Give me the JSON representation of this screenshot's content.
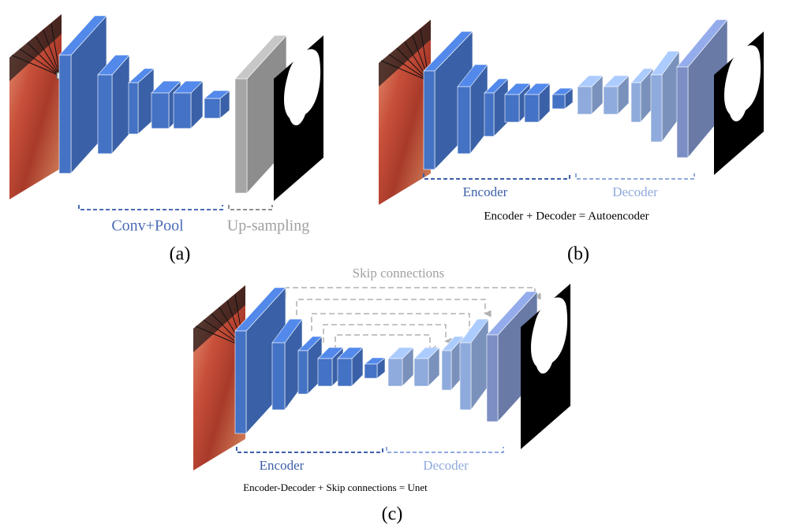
{
  "panels": [
    {
      "label": "(a)",
      "segments": [
        "Conv+Pool",
        "Up-sampling"
      ]
    },
    {
      "label": "(b)",
      "segments": [
        "Encoder",
        "Decoder"
      ],
      "caption": "Encoder + Decoder = Autoencoder"
    },
    {
      "label": "(c)",
      "top_label": "Skip connections",
      "segments": [
        "Encoder",
        "Decoder"
      ],
      "caption": "Encoder-Decoder + Skip connections = Unet"
    }
  ]
}
